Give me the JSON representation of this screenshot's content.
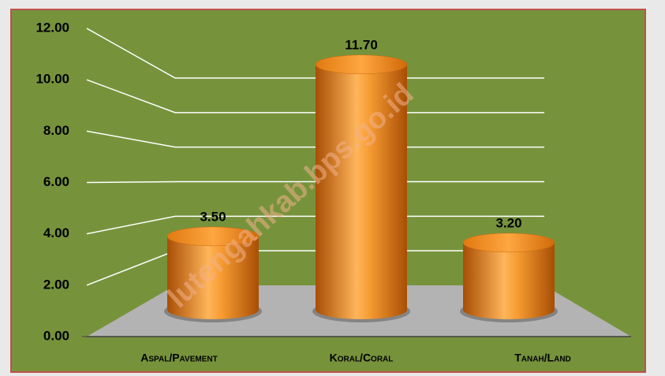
{
  "chart_data": {
    "type": "bar",
    "categories": [
      "Aspal/Pavement",
      "Koral/Coral",
      "Tanah/Land"
    ],
    "values": [
      3.5,
      11.7,
      3.2
    ],
    "value_labels": [
      "3.50",
      "11.70",
      "3.20"
    ],
    "color": "#f08a1c",
    "ylim": [
      0,
      12
    ],
    "yticks": [
      {
        "value": 0,
        "label": "0.00"
      },
      {
        "value": 2,
        "label": "2.00"
      },
      {
        "value": 4,
        "label": "4.00"
      },
      {
        "value": 6,
        "label": "6.00"
      },
      {
        "value": 8,
        "label": "8.00"
      },
      {
        "value": 10,
        "label": "10.00"
      },
      {
        "value": 12,
        "label": "12.00"
      }
    ],
    "grid": true,
    "watermark": "lutengahkab.bps.go.id"
  }
}
